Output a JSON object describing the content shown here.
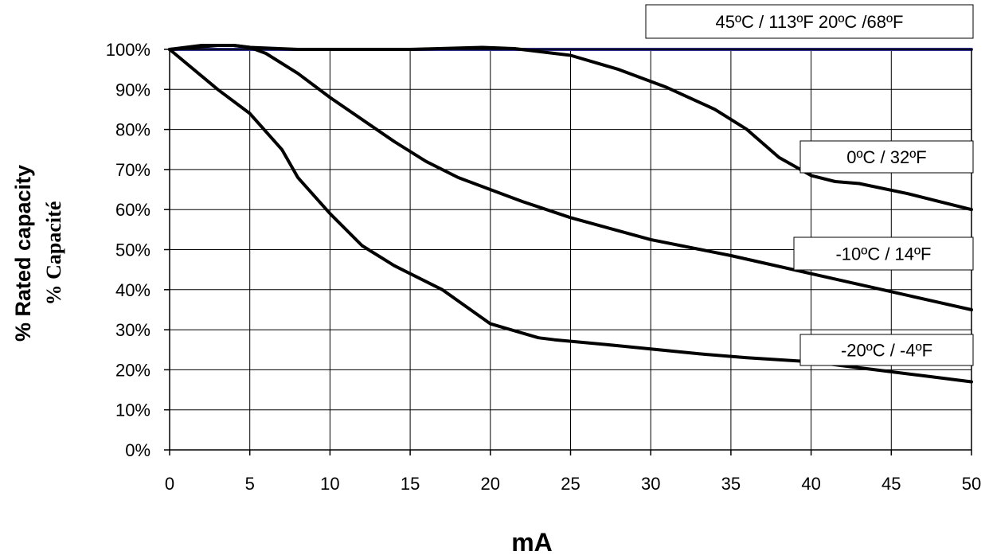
{
  "chart_data": {
    "type": "line",
    "xlabel": "mA",
    "ylabel": "% Rated capacity",
    "ylabel_secondary": "% Capacité",
    "xlim": [
      0,
      50
    ],
    "ylim": [
      0,
      100
    ],
    "x_ticks": [
      "0",
      "5",
      "10",
      "15",
      "20",
      "25",
      "30",
      "35",
      "40",
      "45",
      "50"
    ],
    "y_ticks": [
      "0%",
      "10%",
      "20%",
      "30%",
      "40%",
      "50%",
      "60%",
      "70%",
      "80%",
      "90%",
      "100%"
    ],
    "grid": true,
    "series": [
      {
        "name": "45ºC / 113ºF   20ºC /68ºF",
        "color": "#2e2e8c",
        "x": [
          0,
          20,
          30,
          40,
          50
        ],
        "y": [
          100,
          100,
          100,
          100,
          100
        ]
      },
      {
        "name": "0ºC / 32ºF",
        "color": "#000000",
        "x": [
          0,
          3,
          4,
          5,
          8,
          15,
          19.5,
          21.5,
          25,
          28,
          31,
          34,
          36,
          38,
          40,
          41.5,
          43,
          46,
          50
        ],
        "y": [
          100,
          101,
          101,
          100.5,
          100,
          100,
          100.5,
          100.2,
          98.5,
          95,
          90.5,
          85,
          80,
          73,
          68.5,
          67,
          66.5,
          64,
          60
        ]
      },
      {
        "name": "-10ºC / 14ºF",
        "color": "#000000",
        "x": [
          0,
          2,
          4,
          5,
          6,
          8,
          10,
          14,
          16,
          18,
          22,
          25,
          30,
          35,
          40,
          45,
          50
        ],
        "y": [
          100,
          101,
          101,
          100.5,
          99,
          94,
          88,
          77,
          72,
          68,
          62,
          58,
          52.5,
          48.5,
          44,
          39.5,
          35
        ]
      },
      {
        "name": "-20ºC / -4ºF",
        "color": "#000000",
        "x": [
          0,
          3,
          5,
          7,
          8,
          10,
          12,
          14,
          17,
          20,
          23,
          24,
          28,
          33,
          36,
          40,
          42,
          44,
          47,
          50
        ],
        "y": [
          100,
          90,
          84,
          75,
          68,
          59,
          51,
          46,
          40,
          31.5,
          28,
          27.5,
          26,
          24,
          23,
          22,
          21,
          20,
          18.5,
          17
        ]
      }
    ],
    "annotations": [
      {
        "text": "45ºC / 113ºF   20ºC /68ºF",
        "series": 0
      },
      {
        "text": "0ºC / 32ºF",
        "series": 1
      },
      {
        "text": "-10ºC / 14ºF",
        "series": 2
      },
      {
        "text": "-20ºC / -4ºF",
        "series": 3
      }
    ]
  }
}
